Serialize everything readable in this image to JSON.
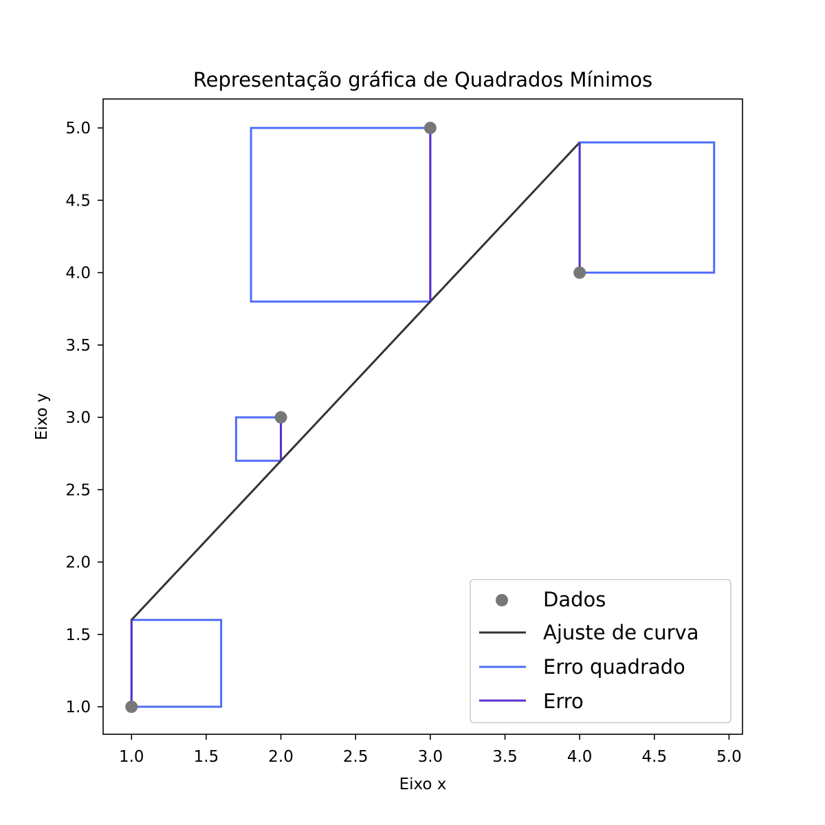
{
  "chart_data": {
    "type": "scatter",
    "title": "Representação gráfica de Quadrados Mínimos",
    "xlabel": "Eixo x",
    "ylabel": "Eixo y",
    "xlim": [
      0.81,
      5.09
    ],
    "ylim": [
      0.81,
      5.2
    ],
    "xticks": [
      1.0,
      1.5,
      2.0,
      2.5,
      3.0,
      3.5,
      4.0,
      4.5,
      5.0
    ],
    "xtick_labels": [
      "1.0",
      "1.5",
      "2.0",
      "2.5",
      "3.0",
      "3.5",
      "4.0",
      "4.5",
      "5.0"
    ],
    "yticks": [
      1.0,
      1.5,
      2.0,
      2.5,
      3.0,
      3.5,
      4.0,
      4.5,
      5.0
    ],
    "ytick_labels": [
      "1.0",
      "1.5",
      "2.0",
      "2.5",
      "3.0",
      "3.5",
      "4.0",
      "4.5",
      "5.0"
    ],
    "grid": false,
    "legend_position": "lower-right",
    "colors": {
      "points": "#777777",
      "fit_line": "#333333",
      "squares": "#4f6ef7",
      "error": "#5b2fd1",
      "axes": "#000000"
    },
    "series": [
      {
        "name": "Dados",
        "kind": "scatter",
        "points": [
          {
            "x": 1.0,
            "y": 1.0
          },
          {
            "x": 2.0,
            "y": 3.0
          },
          {
            "x": 3.0,
            "y": 5.0
          },
          {
            "x": 4.0,
            "y": 4.0
          }
        ]
      },
      {
        "name": "Ajuste de curva",
        "kind": "line",
        "points": [
          {
            "x": 1.0,
            "y": 1.6
          },
          {
            "x": 4.0,
            "y": 4.9
          }
        ]
      },
      {
        "name": "Erro quadrado",
        "kind": "squares",
        "squares": [
          {
            "x0": 1.0,
            "x1": 1.6,
            "y0": 1.0,
            "y1": 1.6
          },
          {
            "x0": 1.7,
            "x1": 2.0,
            "y0": 2.7,
            "y1": 3.0
          },
          {
            "x0": 1.8,
            "x1": 3.0,
            "y0": 3.8,
            "y1": 5.0
          },
          {
            "x0": 4.0,
            "x1": 4.9,
            "y0": 4.0,
            "y1": 4.9
          }
        ]
      },
      {
        "name": "Erro",
        "kind": "segments",
        "segments": [
          {
            "x": 1.0,
            "y0": 1.0,
            "y1": 1.6
          },
          {
            "x": 2.0,
            "y0": 2.7,
            "y1": 3.0
          },
          {
            "x": 3.0,
            "y0": 3.8,
            "y1": 5.0
          },
          {
            "x": 4.0,
            "y0": 4.0,
            "y1": 4.9
          }
        ]
      }
    ],
    "legend": [
      "Dados",
      "Ajuste de curva",
      "Erro quadrado",
      "Erro"
    ]
  }
}
